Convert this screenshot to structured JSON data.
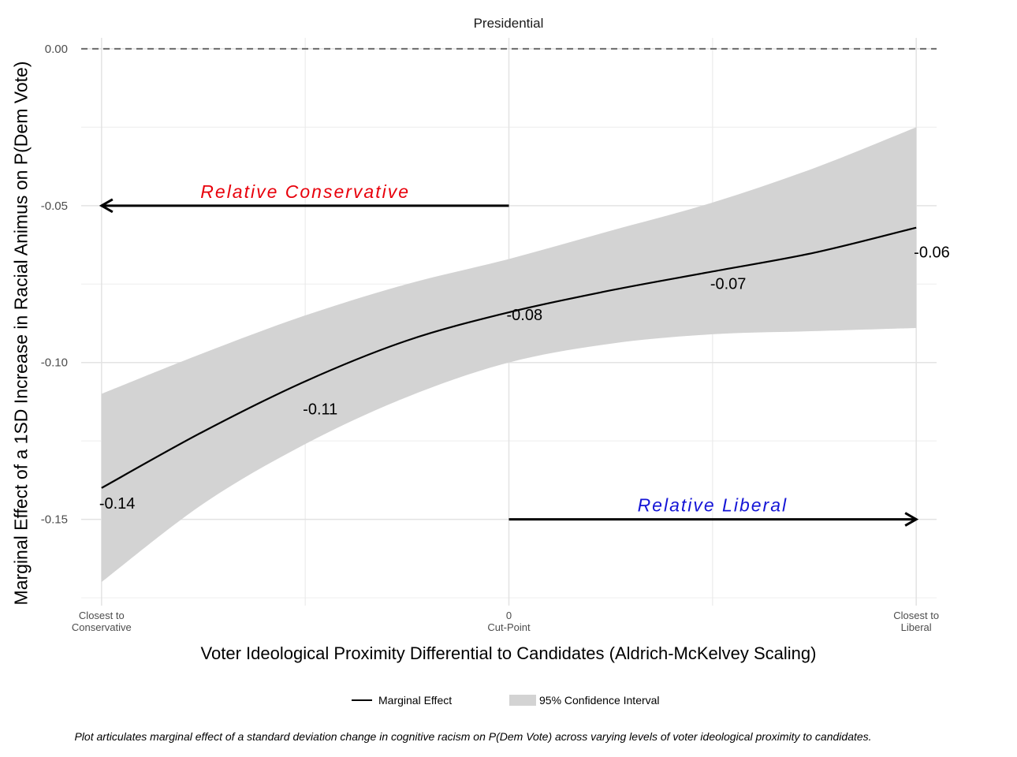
{
  "chart_data": {
    "type": "line",
    "title": "Presidential",
    "xlabel": "Voter Ideological Proximity Differential to Candidates (Aldrich-McKelvey Scaling)",
    "ylabel": "Marginal Effect of a 1SD Increase in Racial Animus on P(Dem Vote)",
    "xlim": [
      -1.05,
      1.05
    ],
    "ylim": [
      -0.1775,
      0.0035
    ],
    "x_ticks": [
      {
        "value": -1,
        "label": "Closest to\nConservative"
      },
      {
        "value": 0,
        "label": "0\nCut-Point"
      },
      {
        "value": 1,
        "label": "Closest to\nLiberal"
      }
    ],
    "x_minor_gridlines": [
      -0.5,
      0.5
    ],
    "y_ticks": [
      {
        "value": 0,
        "label": "0.00"
      },
      {
        "value": -0.05,
        "label": "-0.05"
      },
      {
        "value": -0.1,
        "label": "-0.10"
      },
      {
        "value": -0.15,
        "label": "-0.15"
      }
    ],
    "y_minor_gridlines": [
      -0.025,
      -0.075,
      -0.125,
      -0.175
    ],
    "reference_line": {
      "y": 0,
      "style": "dashed"
    },
    "series": [
      {
        "name": "Marginal Effect",
        "color": "#000000",
        "x": [
          -1.0,
          -0.75,
          -0.5,
          -0.25,
          0.0,
          0.25,
          0.5,
          0.75,
          1.0
        ],
        "y": [
          -0.14,
          -0.122,
          -0.106,
          -0.093,
          -0.084,
          -0.077,
          -0.071,
          -0.065,
          -0.057
        ]
      },
      {
        "name": "95% Confidence Interval",
        "color": "#d3d3d3",
        "x": [
          -1.0,
          -0.75,
          -0.5,
          -0.25,
          0.0,
          0.25,
          0.5,
          0.75,
          1.0
        ],
        "lower": [
          -0.17,
          -0.145,
          -0.126,
          -0.111,
          -0.1,
          -0.094,
          -0.091,
          -0.09,
          -0.089
        ],
        "upper": [
          -0.11,
          -0.097,
          -0.085,
          -0.075,
          -0.067,
          -0.058,
          -0.049,
          -0.038,
          -0.025
        ]
      }
    ],
    "data_labels": [
      {
        "x": -1.0,
        "y": -0.14,
        "text": "-0.14"
      },
      {
        "x": -0.5,
        "y": -0.11,
        "text": "-0.11"
      },
      {
        "x": 0.0,
        "y": -0.08,
        "text": "-0.08"
      },
      {
        "x": 0.5,
        "y": -0.07,
        "text": "-0.07"
      },
      {
        "x": 1.0,
        "y": -0.06,
        "text": "-0.06"
      }
    ],
    "annotations": [
      {
        "text": "Relative Conservative",
        "color": "#e8000b",
        "arrow_from_x": 0,
        "arrow_to_x": -1,
        "y": -0.05
      },
      {
        "text": "Relative Liberal",
        "color": "#1515d6",
        "arrow_from_x": 0,
        "arrow_to_x": 1,
        "y": -0.15
      }
    ],
    "legend": {
      "position": "bottom",
      "items": [
        {
          "label": "Marginal Effect",
          "kind": "line"
        },
        {
          "label": "95% Confidence Interval",
          "kind": "fill"
        }
      ]
    },
    "caption": "Plot articulates marginal effect of a standard deviation change in cognitive racism on P(Dem Vote) across varying levels of voter ideological proximity to candidates.",
    "grid": true
  }
}
